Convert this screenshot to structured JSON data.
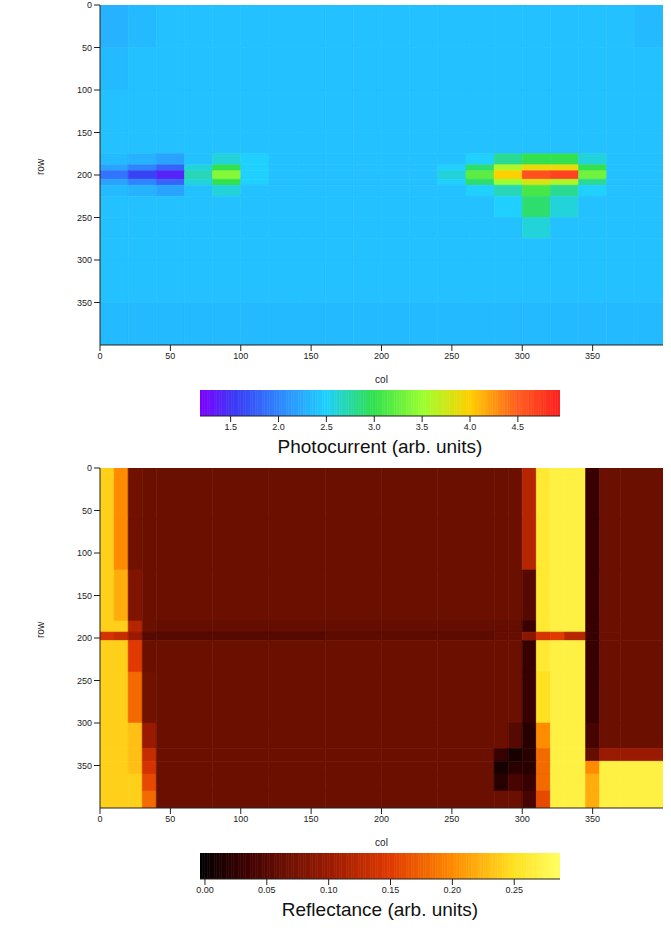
{
  "chart_data": [
    {
      "type": "heatmap",
      "color": "jet",
      "x_label": "col",
      "y_label": "row",
      "xlim": [
        0,
        400
      ],
      "ylim": [
        400,
        0
      ],
      "xticks": [
        0,
        50,
        100,
        150,
        200,
        250,
        300,
        350
      ],
      "yticks": [
        0,
        50,
        100,
        150,
        200,
        250,
        300,
        350
      ],
      "col_edges": [
        0,
        20,
        40,
        60,
        80,
        100,
        120,
        140,
        160,
        180,
        200,
        220,
        240,
        260,
        280,
        300,
        320,
        340,
        360,
        380,
        400
      ],
      "row_edges": [
        0,
        50,
        100,
        150,
        175,
        188,
        195,
        205,
        212,
        225,
        250,
        275,
        300,
        350,
        400
      ],
      "cells": [
        [
          2.3,
          2.35,
          2.4,
          2.4,
          2.4,
          2.4,
          2.4,
          2.4,
          2.4,
          2.4,
          2.4,
          2.4,
          2.4,
          2.4,
          2.4,
          2.4,
          2.4,
          2.4,
          2.4,
          2.35
        ],
        [
          2.35,
          2.4,
          2.4,
          2.4,
          2.4,
          2.4,
          2.4,
          2.4,
          2.4,
          2.4,
          2.4,
          2.4,
          2.4,
          2.4,
          2.4,
          2.4,
          2.4,
          2.4,
          2.4,
          2.4
        ],
        [
          2.4,
          2.4,
          2.4,
          2.4,
          2.4,
          2.4,
          2.4,
          2.4,
          2.4,
          2.4,
          2.4,
          2.4,
          2.4,
          2.4,
          2.4,
          2.4,
          2.4,
          2.4,
          2.4,
          2.4
        ],
        [
          2.4,
          2.4,
          2.4,
          2.4,
          2.4,
          2.4,
          2.4,
          2.4,
          2.4,
          2.4,
          2.4,
          2.4,
          2.4,
          2.4,
          2.4,
          2.4,
          2.4,
          2.4,
          2.4,
          2.4
        ],
        [
          2.35,
          2.3,
          2.2,
          2.4,
          2.6,
          2.5,
          2.4,
          2.4,
          2.4,
          2.4,
          2.4,
          2.4,
          2.4,
          2.5,
          2.8,
          3.0,
          3.0,
          2.6,
          2.4,
          2.4
        ],
        [
          2.2,
          2.0,
          1.8,
          2.6,
          3.0,
          2.5,
          2.4,
          2.4,
          2.4,
          2.4,
          2.4,
          2.4,
          2.5,
          2.9,
          3.6,
          3.9,
          3.9,
          3.0,
          2.4,
          2.4
        ],
        [
          1.9,
          1.6,
          1.4,
          2.7,
          3.4,
          2.5,
          2.4,
          2.4,
          2.4,
          2.4,
          2.4,
          2.4,
          2.6,
          3.2,
          4.0,
          4.6,
          4.7,
          3.3,
          2.4,
          2.4
        ],
        [
          2.2,
          2.0,
          1.8,
          2.6,
          3.0,
          2.5,
          2.4,
          2.4,
          2.4,
          2.4,
          2.4,
          2.4,
          2.5,
          2.9,
          3.5,
          3.8,
          3.6,
          2.8,
          2.4,
          2.4
        ],
        [
          2.35,
          2.3,
          2.2,
          2.4,
          2.6,
          2.4,
          2.4,
          2.4,
          2.4,
          2.4,
          2.4,
          2.4,
          2.4,
          2.5,
          2.7,
          3.1,
          2.8,
          2.5,
          2.4,
          2.4
        ],
        [
          2.4,
          2.4,
          2.4,
          2.4,
          2.4,
          2.4,
          2.4,
          2.4,
          2.4,
          2.4,
          2.4,
          2.4,
          2.4,
          2.4,
          2.5,
          2.9,
          2.6,
          2.4,
          2.4,
          2.4
        ],
        [
          2.4,
          2.4,
          2.4,
          2.4,
          2.4,
          2.4,
          2.4,
          2.4,
          2.4,
          2.4,
          2.4,
          2.4,
          2.4,
          2.4,
          2.4,
          2.6,
          2.4,
          2.4,
          2.4,
          2.4
        ],
        [
          2.4,
          2.4,
          2.4,
          2.4,
          2.4,
          2.4,
          2.4,
          2.4,
          2.4,
          2.4,
          2.4,
          2.4,
          2.4,
          2.4,
          2.4,
          2.4,
          2.4,
          2.4,
          2.4,
          2.4
        ],
        [
          2.4,
          2.4,
          2.4,
          2.4,
          2.4,
          2.4,
          2.4,
          2.4,
          2.4,
          2.4,
          2.4,
          2.4,
          2.4,
          2.4,
          2.4,
          2.4,
          2.4,
          2.4,
          2.4,
          2.4
        ],
        [
          2.35,
          2.35,
          2.35,
          2.35,
          2.35,
          2.35,
          2.35,
          2.35,
          2.35,
          2.35,
          2.35,
          2.35,
          2.35,
          2.35,
          2.35,
          2.35,
          2.35,
          2.35,
          2.35,
          2.35
        ]
      ],
      "colorbar_lim": [
        1.18,
        4.94
      ],
      "colorbar_ticks": [
        1.5,
        {
          "value": 2,
          "label": "2.0"
        },
        2.5,
        {
          "value": 3,
          "label": "3.0"
        },
        3.5,
        {
          "value": 4,
          "label": "4.0"
        },
        4.5
      ],
      "colorbar_title": "Photocurrent (arb. units)"
    },
    {
      "type": "heatmap",
      "color": "hot",
      "x_label": "col",
      "y_label": "row",
      "xlim": [
        0,
        400
      ],
      "ylim": [
        400,
        0
      ],
      "xticks": [
        0,
        50,
        100,
        150,
        200,
        250,
        300,
        350
      ],
      "yticks": [
        0,
        50,
        100,
        150,
        200,
        250,
        300,
        350
      ],
      "col_edges": [
        0,
        10,
        20,
        30,
        40,
        80,
        120,
        160,
        200,
        240,
        280,
        290,
        300,
        310,
        320,
        330,
        345,
        355,
        370,
        400
      ],
      "row_edges": [
        0,
        60,
        120,
        180,
        193,
        203,
        240,
        300,
        330,
        345,
        360,
        380,
        400
      ],
      "cells": [
        [
          0.24,
          0.2,
          0.07,
          0.065,
          0.065,
          0.065,
          0.065,
          0.065,
          0.065,
          0.065,
          0.065,
          0.065,
          0.12,
          0.26,
          0.27,
          0.27,
          0.03,
          0.065,
          0.065
        ],
        [
          0.24,
          0.2,
          0.07,
          0.065,
          0.065,
          0.065,
          0.065,
          0.065,
          0.065,
          0.065,
          0.065,
          0.065,
          0.12,
          0.26,
          0.27,
          0.27,
          0.03,
          0.065,
          0.065
        ],
        [
          0.24,
          0.22,
          0.08,
          0.065,
          0.065,
          0.065,
          0.065,
          0.065,
          0.065,
          0.065,
          0.065,
          0.065,
          0.05,
          0.26,
          0.27,
          0.27,
          0.03,
          0.065,
          0.065
        ],
        [
          0.24,
          0.24,
          0.12,
          0.065,
          0.06,
          0.06,
          0.06,
          0.06,
          0.06,
          0.06,
          0.06,
          0.06,
          0.03,
          0.26,
          0.27,
          0.27,
          0.03,
          0.065,
          0.065
        ],
        [
          0.14,
          0.13,
          0.1,
          0.05,
          0.05,
          0.05,
          0.05,
          0.055,
          0.055,
          0.055,
          0.06,
          0.06,
          0.09,
          0.14,
          0.15,
          0.12,
          0.03,
          0.065,
          0.065
        ],
        [
          0.24,
          0.24,
          0.15,
          0.065,
          0.065,
          0.065,
          0.065,
          0.065,
          0.065,
          0.065,
          0.065,
          0.065,
          0.03,
          0.26,
          0.27,
          0.27,
          0.03,
          0.065,
          0.065
        ],
        [
          0.24,
          0.24,
          0.18,
          0.07,
          0.065,
          0.065,
          0.065,
          0.065,
          0.065,
          0.065,
          0.065,
          0.065,
          0.03,
          0.25,
          0.27,
          0.27,
          0.03,
          0.065,
          0.065
        ],
        [
          0.24,
          0.24,
          0.23,
          0.1,
          0.065,
          0.065,
          0.065,
          0.065,
          0.065,
          0.065,
          0.065,
          0.05,
          0.02,
          0.2,
          0.27,
          0.27,
          0.04,
          0.065,
          0.065
        ],
        [
          0.24,
          0.24,
          0.23,
          0.13,
          0.065,
          0.065,
          0.065,
          0.065,
          0.065,
          0.065,
          0.03,
          0.01,
          0.02,
          0.18,
          0.27,
          0.27,
          0.06,
          0.1,
          0.1
        ],
        [
          0.24,
          0.24,
          0.23,
          0.14,
          0.065,
          0.065,
          0.065,
          0.065,
          0.065,
          0.065,
          0.01,
          0.02,
          0.02,
          0.18,
          0.27,
          0.27,
          0.2,
          0.27,
          0.27
        ],
        [
          0.24,
          0.24,
          0.24,
          0.16,
          0.065,
          0.065,
          0.065,
          0.065,
          0.065,
          0.065,
          0.02,
          0.04,
          0.03,
          0.18,
          0.27,
          0.27,
          0.22,
          0.27,
          0.27
        ],
        [
          0.24,
          0.24,
          0.24,
          0.18,
          0.065,
          0.065,
          0.065,
          0.065,
          0.065,
          0.065,
          0.065,
          0.065,
          0.04,
          0.16,
          0.27,
          0.27,
          0.22,
          0.27,
          0.27
        ]
      ],
      "colorbar_lim": [
        -0.004,
        0.287
      ],
      "colorbar_ticks": [
        {
          "value": 0,
          "label": "0.00"
        },
        {
          "value": 0.05,
          "label": "0.05"
        },
        {
          "value": 0.1,
          "label": "0.10"
        },
        {
          "value": 0.15,
          "label": "0.15"
        },
        {
          "value": 0.2,
          "label": "0.20"
        },
        {
          "value": 0.25,
          "label": "0.25"
        }
      ],
      "colorbar_title": "Reflectance (arb. units)"
    }
  ]
}
